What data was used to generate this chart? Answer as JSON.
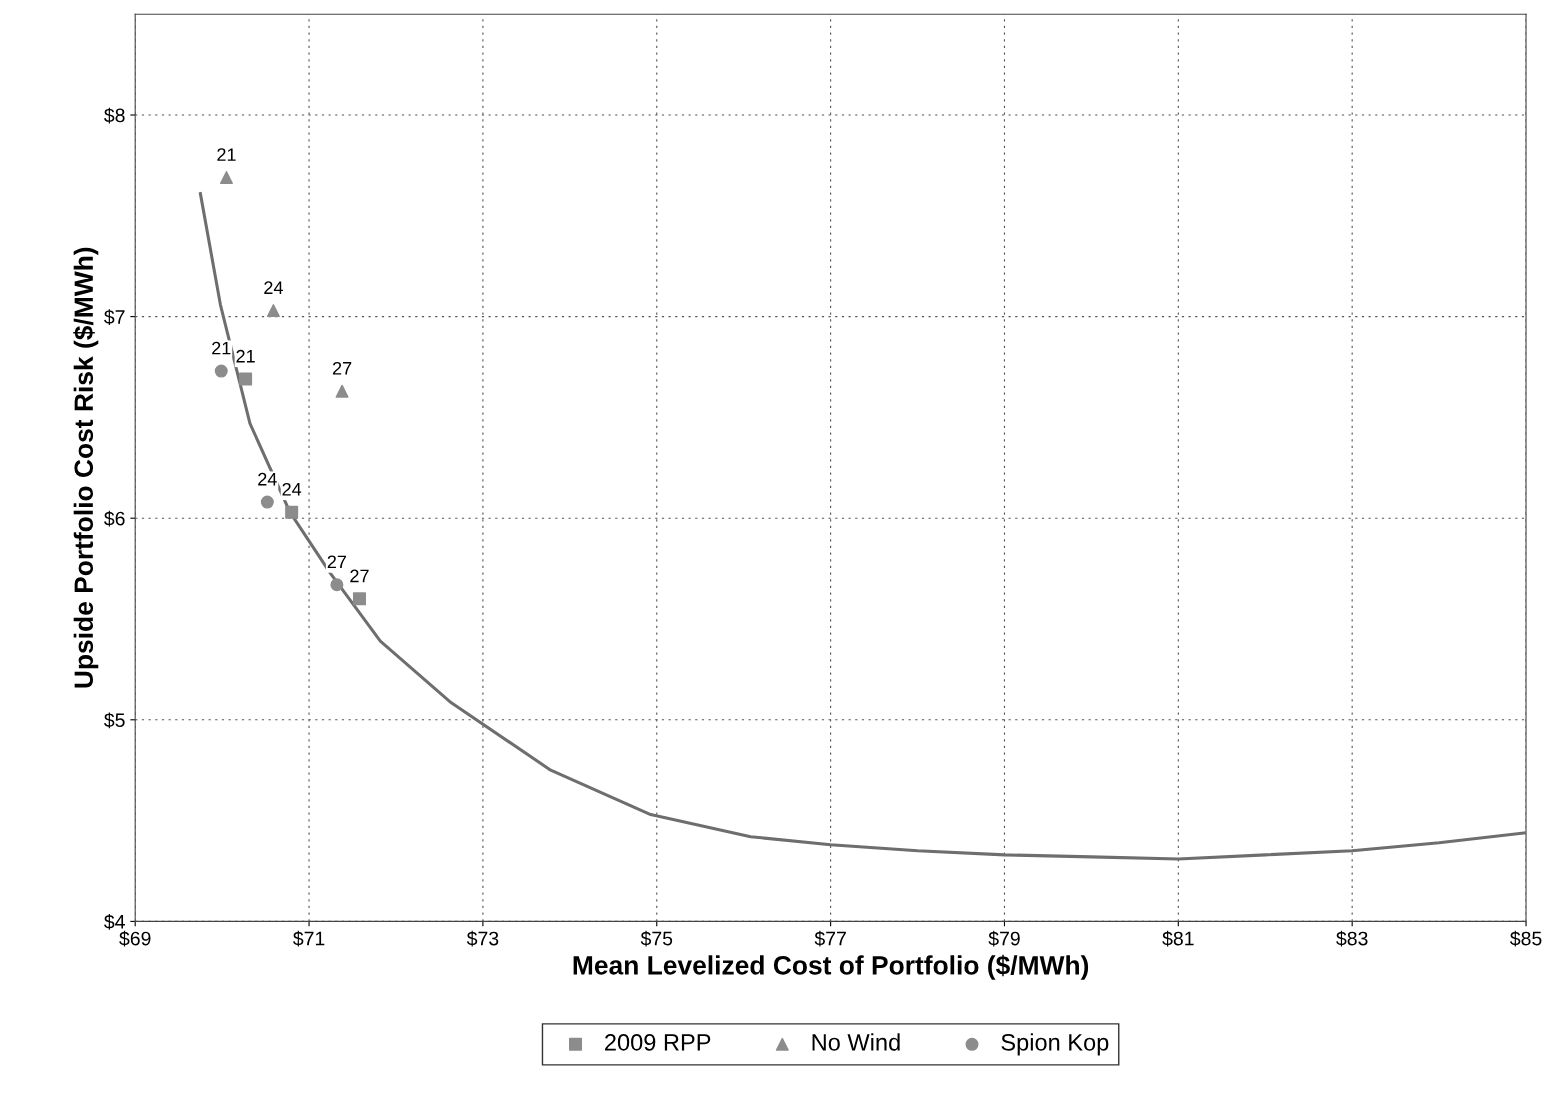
{
  "chart_data": {
    "type": "scatter",
    "xlabel": "Mean Levelized Cost of Portfolio ($/MWh)",
    "ylabel": "Upside Portfolio Cost Risk ($/MWh)",
    "xlim": [
      69,
      85
    ],
    "ylim": [
      4,
      8.5
    ],
    "xticks": [
      {
        "value": 69,
        "label": "$69"
      },
      {
        "value": 71,
        "label": "$71"
      },
      {
        "value": 73,
        "label": "$73"
      },
      {
        "value": 75,
        "label": "$75"
      },
      {
        "value": 77,
        "label": "$77"
      },
      {
        "value": 79,
        "label": "$79"
      },
      {
        "value": 81,
        "label": "$81"
      },
      {
        "value": 83,
        "label": "$83"
      },
      {
        "value": 85,
        "label": "$85"
      }
    ],
    "yticks": [
      {
        "value": 4,
        "label": "$4"
      },
      {
        "value": 5,
        "label": "$5"
      },
      {
        "value": 6,
        "label": "$6"
      },
      {
        "value": 7,
        "label": "$7"
      },
      {
        "value": 8,
        "label": "$8"
      }
    ],
    "grid": true,
    "legend": "bottom",
    "annotations": [
      {
        "text": "21",
        "x": 70.27,
        "y": 6.69
      },
      {
        "text": "24",
        "x": 70.8,
        "y": 6.03
      },
      {
        "text": "27",
        "x": 71.58,
        "y": 5.6
      },
      {
        "text": "21",
        "x": 70.05,
        "y": 7.69
      },
      {
        "text": "24",
        "x": 70.59,
        "y": 7.03
      },
      {
        "text": "27",
        "x": 71.38,
        "y": 6.63
      },
      {
        "text": "21",
        "x": 69.99,
        "y": 6.73
      },
      {
        "text": "24",
        "x": 70.52,
        "y": 6.08
      },
      {
        "text": "27",
        "x": 71.32,
        "y": 5.67
      }
    ],
    "series": [
      {
        "type": "line",
        "color": "#6e6e6e",
        "marker": "none",
        "line_style": "solid",
        "x": [
          69.75,
          69.98,
          70.32,
          70.78,
          71.24,
          71.82,
          72.62,
          73.78,
          74.93,
          76.08,
          77.0,
          78.0,
          79.0,
          80.0,
          81.0,
          82.0,
          83.0,
          84.0,
          85.0
        ],
        "values": [
          7.61,
          7.06,
          6.47,
          6.03,
          5.73,
          5.39,
          5.09,
          4.75,
          4.53,
          4.42,
          4.38,
          4.35,
          4.33,
          4.32,
          4.31,
          4.33,
          4.35,
          4.39,
          4.44
        ]
      },
      {
        "name": "2009 RPP",
        "color": "#8c8c8c",
        "marker": "square",
        "x": [
          70.27,
          70.8,
          71.58
        ],
        "values": [
          6.69,
          6.03,
          5.6
        ]
      },
      {
        "name": "No Wind",
        "color": "#8c8c8c",
        "marker": "triangle",
        "x": [
          70.05,
          70.59,
          71.38
        ],
        "values": [
          7.69,
          7.03,
          6.63
        ]
      },
      {
        "name": "Spion Kop",
        "color": "#8c8c8c",
        "marker": "circle",
        "x": [
          69.99,
          70.52,
          71.32
        ],
        "values": [
          6.73,
          6.08,
          5.67
        ]
      }
    ]
  }
}
